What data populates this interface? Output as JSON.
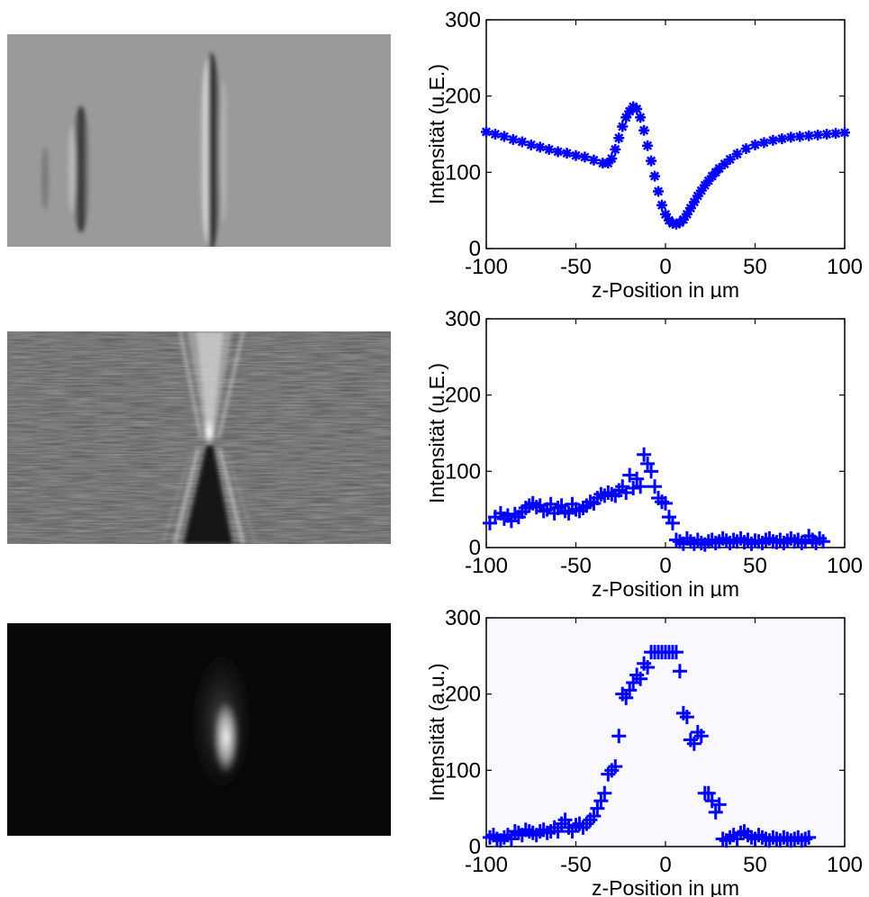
{
  "images": [
    {
      "name": "gray-interference-image",
      "colors": {
        "bg": "#9a9a9a"
      }
    },
    {
      "name": "noisy-streaked-image",
      "colors": {
        "bg": "#555555"
      }
    },
    {
      "name": "dark-focus-image",
      "colors": {
        "bg": "#080808"
      }
    }
  ],
  "colors": {
    "marker": "#0000ff",
    "axis": "#000000"
  },
  "chart_data": [
    {
      "type": "line",
      "xlabel": "z-Position in µm",
      "ylabel": "Intensität (u.E.)",
      "xlim": [
        -100,
        100
      ],
      "ylim": [
        0,
        300
      ],
      "xticks": [
        "-100",
        "-50",
        "0",
        "50",
        "100"
      ],
      "yticks": [
        "0",
        "100",
        "200",
        "300"
      ],
      "marker": "asterisk",
      "grid": false,
      "x": [
        -100,
        -95,
        -90,
        -85,
        -80,
        -75,
        -70,
        -65,
        -60,
        -55,
        -50,
        -45,
        -40,
        -35,
        -32,
        -30,
        -28,
        -26,
        -24,
        -22,
        -20,
        -18,
        -16,
        -14,
        -12,
        -10,
        -8,
        -6,
        -4,
        -2,
        0,
        2,
        4,
        6,
        8,
        10,
        12,
        14,
        16,
        18,
        20,
        22,
        24,
        26,
        28,
        30,
        33,
        36,
        40,
        45,
        50,
        55,
        60,
        65,
        70,
        75,
        80,
        85,
        90,
        95,
        100
      ],
      "y": [
        153,
        150,
        147,
        143,
        140,
        136,
        133,
        130,
        127,
        125,
        122,
        120,
        116,
        112,
        112,
        118,
        130,
        145,
        160,
        172,
        180,
        186,
        183,
        172,
        155,
        135,
        115,
        95,
        75,
        57,
        45,
        37,
        33,
        32,
        34,
        38,
        45,
        53,
        61,
        69,
        76,
        83,
        89,
        95,
        100,
        105,
        111,
        117,
        124,
        131,
        136,
        139,
        142,
        144,
        146,
        147,
        148,
        149,
        150,
        151,
        152
      ]
    },
    {
      "type": "scatter",
      "xlabel": "z-Position in µm",
      "ylabel": "Intensität (u.E.)",
      "xlim": [
        -100,
        100
      ],
      "ylim": [
        0,
        300
      ],
      "xticks": [
        "-100",
        "-50",
        "0",
        "50",
        "100"
      ],
      "yticks": [
        "0",
        "100",
        "200",
        "300"
      ],
      "marker": "plus",
      "grid": false,
      "x": [
        -98,
        -95,
        -92,
        -90,
        -88,
        -86,
        -84,
        -82,
        -80,
        -78,
        -76,
        -74,
        -72,
        -70,
        -68,
        -66,
        -64,
        -62,
        -60,
        -58,
        -56,
        -54,
        -52,
        -50,
        -48,
        -46,
        -44,
        -42,
        -40,
        -38,
        -36,
        -34,
        -32,
        -30,
        -28,
        -26,
        -24,
        -22,
        -20,
        -18,
        -16,
        -14,
        -12,
        -10,
        -8,
        -6,
        -4,
        -2,
        0,
        2,
        4,
        6,
        8,
        10,
        12,
        14,
        16,
        18,
        20,
        22,
        24,
        26,
        28,
        30,
        32,
        34,
        36,
        38,
        40,
        42,
        44,
        46,
        48,
        50,
        52,
        54,
        56,
        58,
        60,
        62,
        64,
        66,
        68,
        70,
        72,
        74,
        76,
        78,
        80,
        82,
        84,
        86,
        88
      ],
      "y": [
        32,
        40,
        45,
        38,
        42,
        35,
        44,
        40,
        47,
        52,
        55,
        58,
        53,
        55,
        48,
        50,
        57,
        45,
        52,
        55,
        48,
        45,
        57,
        50,
        48,
        52,
        55,
        60,
        58,
        65,
        70,
        68,
        72,
        70,
        68,
        75,
        80,
        72,
        95,
        78,
        90,
        80,
        122,
        110,
        100,
        80,
        65,
        60,
        58,
        40,
        32,
        10,
        8,
        5,
        12,
        8,
        5,
        10,
        6,
        4,
        8,
        10,
        6,
        8,
        12,
        9,
        6,
        10,
        8,
        12,
        7,
        10,
        5,
        9,
        8,
        6,
        10,
        12,
        8,
        7,
        10,
        6,
        9,
        12,
        8,
        10,
        6,
        8,
        15,
        10,
        6,
        12,
        8
      ]
    },
    {
      "type": "scatter",
      "xlabel": "z-Position in µm",
      "ylabel": "Intensität (a.u.)",
      "xlim": [
        -100,
        100
      ],
      "ylim": [
        0,
        300
      ],
      "xticks": [
        "-100",
        "-50",
        "0",
        "50",
        "100"
      ],
      "yticks": [
        "0",
        "100",
        "200",
        "300"
      ],
      "marker": "plus",
      "grid": false,
      "x": [
        -98,
        -96,
        -94,
        -92,
        -90,
        -88,
        -86,
        -84,
        -82,
        -80,
        -78,
        -76,
        -74,
        -72,
        -70,
        -68,
        -66,
        -64,
        -62,
        -60,
        -58,
        -56,
        -54,
        -52,
        -50,
        -48,
        -46,
        -44,
        -42,
        -40,
        -38,
        -36,
        -34,
        -32,
        -30,
        -28,
        -26,
        -24,
        -22,
        -20,
        -18,
        -16,
        -14,
        -12,
        -10,
        -8,
        -6,
        -4,
        -2,
        0,
        2,
        4,
        6,
        8,
        10,
        12,
        14,
        16,
        18,
        20,
        22,
        24,
        26,
        28,
        30,
        32,
        34,
        36,
        38,
        40,
        42,
        44,
        46,
        48,
        50,
        52,
        54,
        56,
        58,
        60,
        62,
        64,
        66,
        68,
        70,
        72,
        74,
        76,
        78,
        80
      ],
      "y": [
        12,
        15,
        10,
        8,
        12,
        15,
        10,
        20,
        18,
        15,
        22,
        20,
        18,
        15,
        20,
        22,
        18,
        20,
        25,
        20,
        30,
        35,
        25,
        20,
        28,
        30,
        25,
        30,
        35,
        40,
        50,
        60,
        70,
        95,
        100,
        105,
        145,
        200,
        195,
        205,
        215,
        225,
        220,
        240,
        235,
        255,
        255,
        255,
        255,
        255,
        255,
        255,
        255,
        230,
        175,
        170,
        140,
        135,
        150,
        145,
        70,
        70,
        60,
        45,
        55,
        10,
        8,
        12,
        15,
        10,
        18,
        20,
        15,
        12,
        10,
        15,
        12,
        10,
        8,
        12,
        10,
        8,
        12,
        10,
        8,
        10,
        12,
        8,
        10,
        12
      ]
    }
  ]
}
